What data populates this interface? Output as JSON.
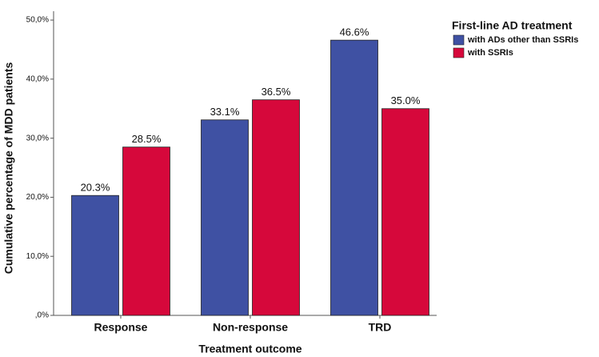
{
  "chart_data": {
    "type": "bar",
    "x_label": "Treatment outcome",
    "y_label": "Cumulative percentage of MDD patients",
    "legend_title": "First-line AD treatment",
    "categories": [
      "Response",
      "Non-response",
      "TRD"
    ],
    "series": [
      {
        "name": "with ADs other than SSRIs",
        "color": "#3f51a3",
        "values": [
          20.3,
          33.1,
          46.6
        ],
        "value_labels": [
          "20.3%",
          "33.1%",
          "46.6%"
        ]
      },
      {
        "name": "with SSRIs",
        "color": "#d6083b",
        "values": [
          28.5,
          36.5,
          35.0
        ],
        "value_labels": [
          "28.5%",
          "36.5%",
          "35.0%"
        ]
      }
    ],
    "ylim": [
      0,
      51.5
    ],
    "yticks": [
      {
        "value": 0,
        "label": ",0%"
      },
      {
        "value": 10,
        "label": "10,0%"
      },
      {
        "value": 20,
        "label": "20,0%"
      },
      {
        "value": 30,
        "label": "30,0%"
      },
      {
        "value": 40,
        "label": "40,0%"
      },
      {
        "value": 50,
        "label": "50,0%"
      }
    ],
    "grid": false,
    "legend_position": "right"
  }
}
